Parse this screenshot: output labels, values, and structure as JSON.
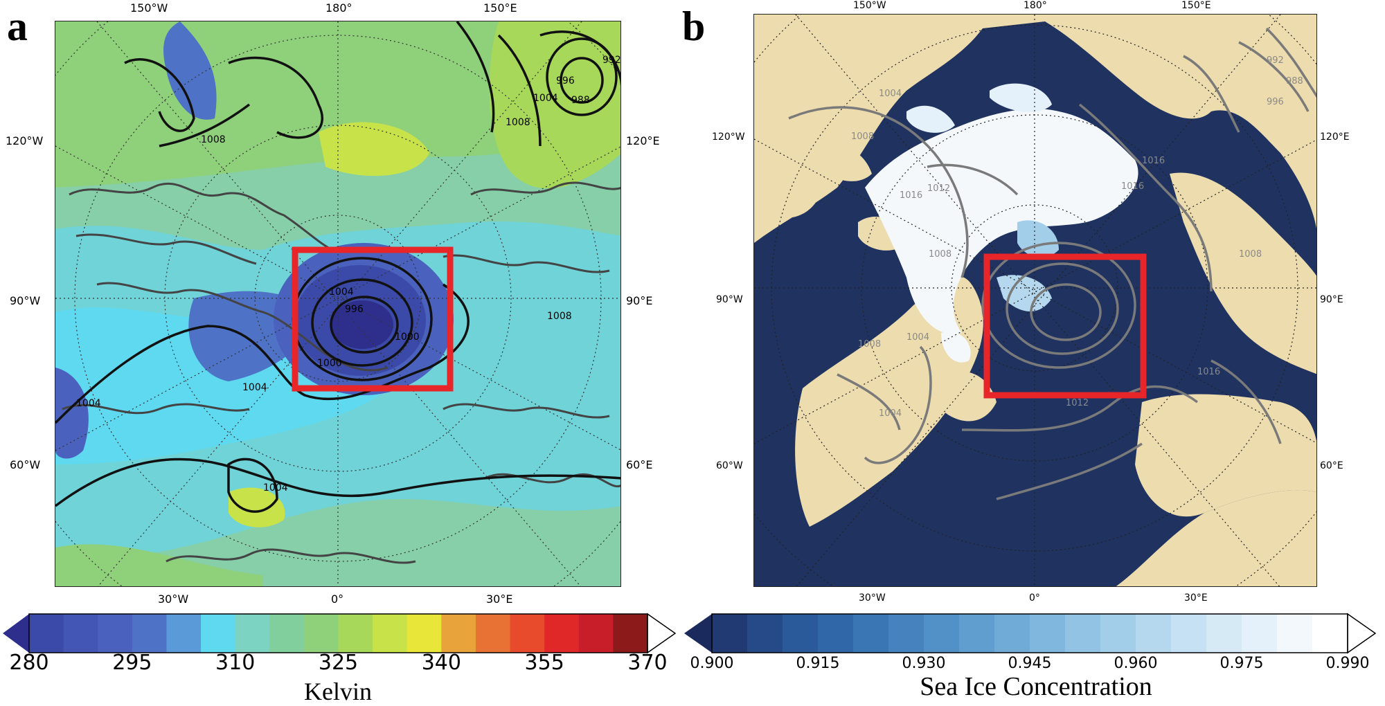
{
  "panel_a": {
    "label": "a",
    "lon_labels": {
      "top": [
        "150°W",
        "180°",
        "150°E"
      ],
      "bottom": [
        "30°W",
        "0°",
        "30°E"
      ]
    },
    "lat_side_labels": {
      "left": [
        "120°W",
        "90°W",
        "60°W"
      ],
      "right": [
        "120°E",
        "90°E",
        "60°E"
      ]
    },
    "contour_labels": [
      "1008",
      "1004",
      "996",
      "1000",
      "1000",
      "1004",
      "1004",
      "1004",
      "1008",
      "996",
      "988",
      "992",
      "1004",
      "1008"
    ],
    "colorbar": {
      "colors": [
        "#2e2f8c",
        "#3b4aa8",
        "#4456b5",
        "#4a62bd",
        "#4e72c6",
        "#5a9ad8",
        "#5fd9f0",
        "#7dd3c1",
        "#82cf9e",
        "#8fd07a",
        "#a8d85a",
        "#c8e24a",
        "#e8e638",
        "#e8a33a",
        "#e87234",
        "#e84a2c",
        "#e02828",
        "#c81e2a",
        "#8c1a1a"
      ],
      "ticks": [
        "280",
        "295",
        "310",
        "325",
        "340",
        "355",
        "370"
      ],
      "title": "Kelvin"
    }
  },
  "panel_b": {
    "label": "b",
    "lon_labels": {
      "top": [
        "150°W",
        "180°",
        "150°E"
      ],
      "bottom": [
        "30°W",
        "0°",
        "30°E"
      ]
    },
    "lat_side_labels": {
      "left": [
        "120°W",
        "90°W",
        "60°W"
      ],
      "right": [
        "120°E",
        "90°E",
        "60°E"
      ]
    },
    "contour_labels": [
      "1004",
      "1008",
      "1012",
      "1016",
      "1008",
      "1008",
      "1004",
      "1004",
      "1012",
      "1016",
      "1016",
      "1008",
      "992",
      "988",
      "996",
      "1016"
    ],
    "colorbar": {
      "colors": [
        "#1b2a5c",
        "#213a73",
        "#264a88",
        "#2b5a9b",
        "#3067a8",
        "#3a75b4",
        "#4683be",
        "#5291c8",
        "#609ed0",
        "#70abd7",
        "#80b7de",
        "#92c3e4",
        "#a3cee9",
        "#b5d8ee",
        "#c6e1f3",
        "#d6eaf6",
        "#e5f1fa",
        "#f2f8fc",
        "#ffffff"
      ],
      "ticks": [
        "0.900",
        "0.915",
        "0.930",
        "0.945",
        "0.960",
        "0.975",
        "0.990"
      ],
      "title": "Sea Ice Concentration"
    }
  },
  "colors": {
    "highlight_box": "#e8262a",
    "land_b": "#eddcae",
    "ocean_b": "#1f3260",
    "ice_b": "#f4f8fb"
  }
}
